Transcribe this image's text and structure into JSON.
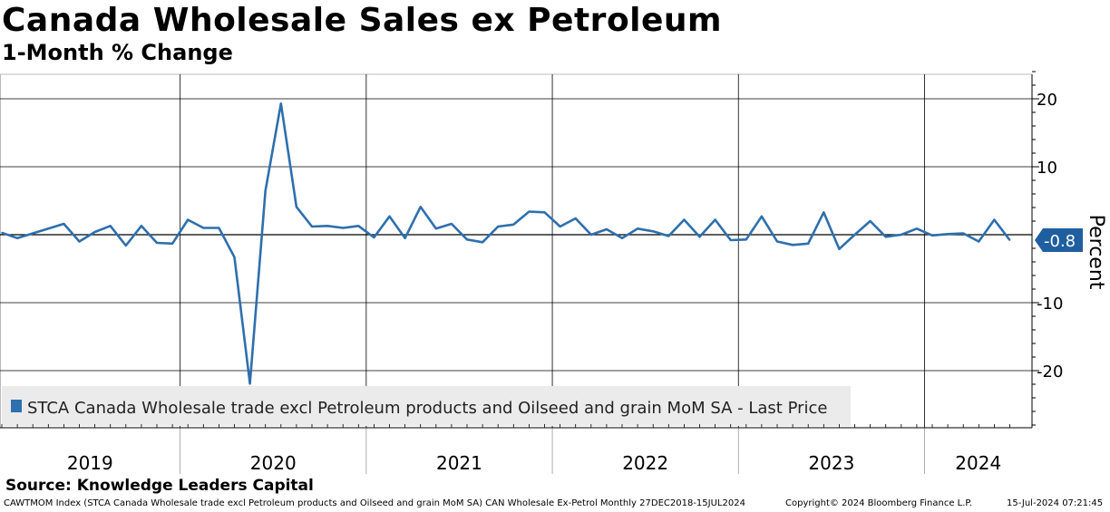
{
  "header": {
    "title": "Canada Wholesale Sales ex Petroleum",
    "subtitle": "1-Month % Change"
  },
  "source": "Source: Knowledge Leaders Capital",
  "footer": {
    "index_info": "CAWTMOM Index (STCA Canada Wholesale trade excl Petroleum products and Oilseed and grain MoM SA) CAN Wholesale Ex-Petrol  Monthly 27DEC2018-15JUL2024",
    "copyright": "Copyright© 2024 Bloomberg Finance L.P.",
    "timestamp": "15-Jul-2024 07:21:45"
  },
  "colors": {
    "series": "#2e6fad",
    "last_price_tag": "#1f5f9f",
    "legend_bg": "#ebebeb",
    "grid": "#000000"
  },
  "chart_data": {
    "type": "line",
    "title": "Canada Wholesale Sales ex Petroleum",
    "subtitle": "1-Month % Change",
    "xlabel": "",
    "ylabel": "Percent",
    "ylim": [
      -28.5,
      24.5
    ],
    "yticks": [
      20,
      10,
      -10,
      -20
    ],
    "zero_line": true,
    "x_start": "2019-01",
    "x_end": "2024-05",
    "year_labels": [
      "2019",
      "2020",
      "2021",
      "2022",
      "2023",
      "2024"
    ],
    "legend": "STCA Canada Wholesale trade excl Petroleum products and Oilseed and grain MoM SA - Last Price",
    "legend_position": "bottom-left",
    "last_value": -0.8,
    "last_value_label": "-0.8",
    "series": [
      {
        "name": "STCA Canada Wholesale trade excl Petroleum products and Oilseed and grain MoM SA",
        "values": [
          0.3,
          -0.5,
          0.2,
          0.9,
          1.6,
          -1.0,
          0.4,
          1.3,
          -1.6,
          1.3,
          -1.2,
          -1.3,
          2.2,
          1.0,
          1.0,
          -3.3,
          -21.9,
          6.5,
          19.3,
          4.1,
          1.2,
          1.3,
          1.0,
          1.3,
          -0.4,
          2.7,
          -0.5,
          4.1,
          0.9,
          1.6,
          -0.7,
          -1.1,
          1.2,
          1.5,
          3.4,
          3.3,
          1.2,
          2.4,
          0.0,
          0.8,
          -0.5,
          0.9,
          0.5,
          -0.2,
          2.2,
          -0.3,
          2.2,
          -0.8,
          -0.7,
          2.7,
          -1.0,
          -1.5,
          -1.3,
          3.3,
          -2.1,
          0.0,
          2.0,
          -0.3,
          0.0,
          0.9,
          -0.1,
          0.1,
          0.2,
          -1.0,
          2.2,
          -0.8
        ]
      }
    ]
  }
}
